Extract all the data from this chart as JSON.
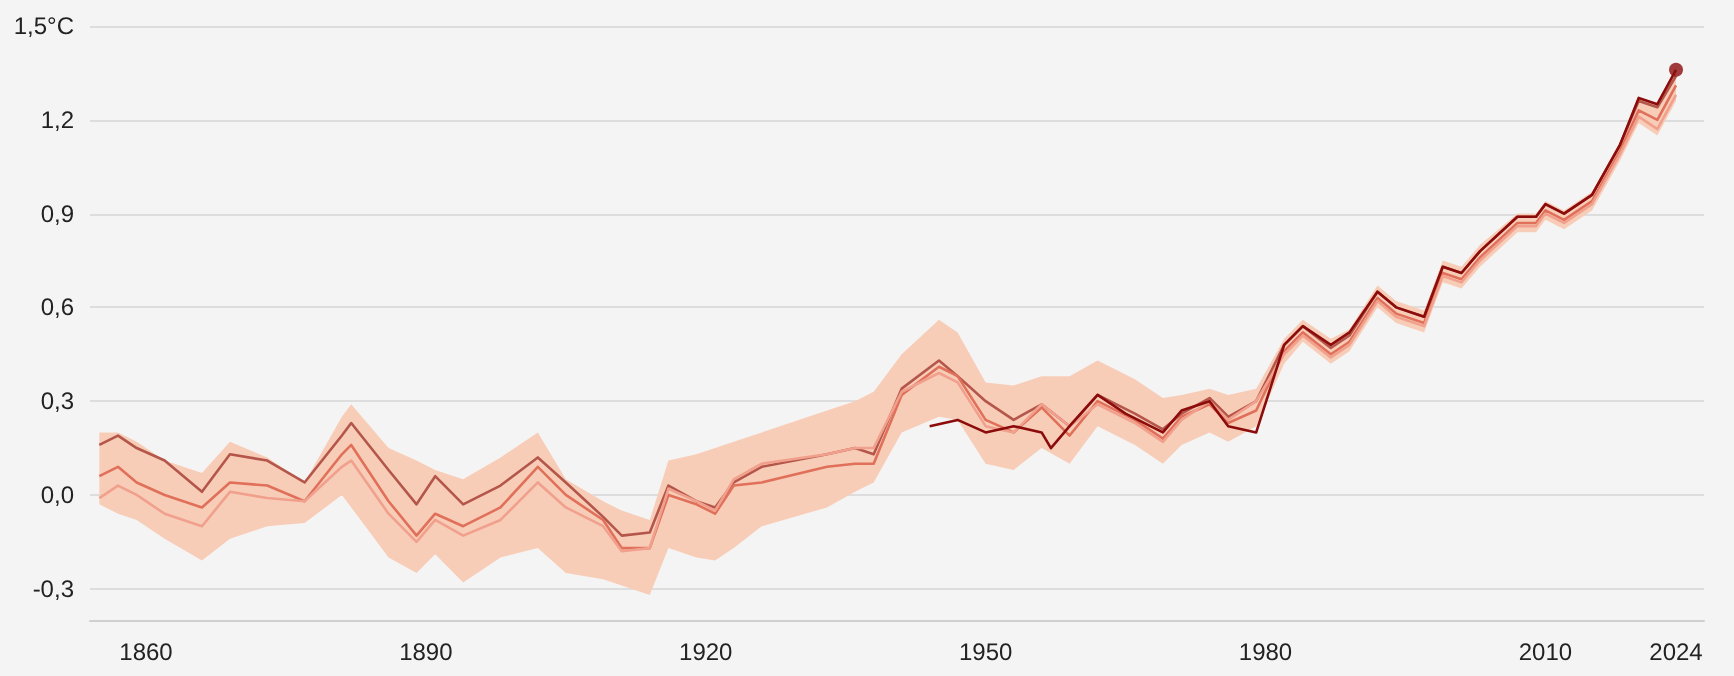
{
  "chart_data": {
    "type": "line",
    "x": [
      1855,
      1857,
      1859,
      1862,
      1866,
      1869,
      1873,
      1877,
      1881,
      1882,
      1886,
      1889,
      1891,
      1894,
      1898,
      1902,
      1905,
      1909,
      1911,
      1914,
      1916,
      1919,
      1921,
      1923,
      1926,
      1933,
      1936,
      1938,
      1941,
      1945,
      1947,
      1950,
      1953,
      1956,
      1959,
      1962,
      1966,
      1969,
      1971,
      1974,
      1976,
      1979,
      1982,
      1984,
      1987,
      1989,
      1992,
      1994,
      1997,
      1999,
      2001,
      2003,
      2007,
      2009,
      2010,
      2012,
      2015,
      2018,
      2020,
      2022,
      2024
    ],
    "series": [
      {
        "color": "#b4564a",
        "values": [
          0.16,
          0.19,
          0.15,
          0.11,
          0.01,
          0.13,
          0.11,
          0.04,
          0.19,
          0.23,
          0.08,
          -0.03,
          0.06,
          -0.03,
          0.03,
          0.12,
          0.04,
          -0.07,
          -0.13,
          -0.12,
          0.03,
          -0.02,
          -0.04,
          0.04,
          0.09,
          0.13,
          0.15,
          0.13,
          0.34,
          0.43,
          0.38,
          0.3,
          0.24,
          0.29,
          0.22,
          0.32,
          0.26,
          0.21,
          0.26,
          0.31,
          0.25,
          0.3,
          0.48,
          0.54,
          0.47,
          0.51,
          0.65,
          0.6,
          0.57,
          0.73,
          0.71,
          0.78,
          0.89,
          0.89,
          0.93,
          0.9,
          0.96,
          1.12,
          1.26,
          1.24,
          1.34
        ]
      },
      {
        "color": "#e0705a",
        "values": [
          0.06,
          0.09,
          0.04,
          0,
          -0.04,
          0.04,
          0.03,
          -0.02,
          0.13,
          0.16,
          -0.02,
          -0.13,
          -0.06,
          -0.1,
          -0.04,
          0.09,
          0,
          -0.08,
          -0.17,
          -0.17,
          0,
          -0.03,
          -0.06,
          0.03,
          0.04,
          0.09,
          0.1,
          0.1,
          0.32,
          0.41,
          0.38,
          0.24,
          0.2,
          0.28,
          0.19,
          0.3,
          0.24,
          0.18,
          0.25,
          0.29,
          0.23,
          0.27,
          0.46,
          0.52,
          0.45,
          0.49,
          0.63,
          0.58,
          0.55,
          0.71,
          0.69,
          0.76,
          0.87,
          0.87,
          0.91,
          0.88,
          0.94,
          1.1,
          1.23,
          1.2,
          1.31
        ],
        "lower": [
          -0.03,
          -0.06,
          -0.08,
          -0.14,
          -0.21,
          -0.14,
          -0.1,
          -0.09,
          0,
          -0.04,
          -0.2,
          -0.25,
          -0.19,
          -0.28,
          -0.2,
          -0.17,
          -0.25,
          -0.27,
          -0.29,
          -0.32,
          -0.17,
          -0.2,
          -0.21,
          -0.17,
          -0.1,
          -0.04,
          0.01,
          0.04,
          0.2,
          0.25,
          0.24,
          0.1,
          0.08,
          0.15,
          0.1,
          0.22,
          0.16,
          0.1,
          0.16,
          0.2,
          0.17,
          0.22,
          0.42,
          0.49,
          0.42,
          0.46,
          0.6,
          0.55,
          0.52,
          0.68,
          0.66,
          0.73,
          0.84,
          0.84,
          0.88,
          0.85,
          0.91,
          1.07,
          1.19,
          1.15,
          1.26
        ],
        "upper": [
          0.2,
          0.2,
          0.17,
          0.11,
          0.07,
          0.17,
          0.12,
          0.04,
          0.25,
          0.29,
          0.15,
          0.11,
          0.08,
          0.05,
          0.12,
          0.2,
          0.05,
          -0.02,
          -0.05,
          -0.08,
          0.11,
          0.13,
          0.15,
          0.17,
          0.2,
          0.27,
          0.3,
          0.33,
          0.45,
          0.56,
          0.52,
          0.36,
          0.35,
          0.38,
          0.38,
          0.43,
          0.37,
          0.31,
          0.32,
          0.34,
          0.32,
          0.34,
          0.5,
          0.56,
          0.5,
          0.53,
          0.67,
          0.62,
          0.59,
          0.75,
          0.73,
          0.8,
          0.9,
          0.9,
          0.94,
          0.91,
          0.97,
          1.13,
          1.27,
          1.25,
          1.35
        ]
      },
      {
        "color": "#f0a08c",
        "values": [
          -0.01,
          0.03,
          0,
          -0.06,
          -0.1,
          0.01,
          -0.01,
          -0.02,
          0.09,
          0.11,
          -0.06,
          -0.15,
          -0.08,
          -0.13,
          -0.08,
          0.04,
          -0.04,
          -0.1,
          -0.18,
          -0.17,
          0.02,
          -0.02,
          -0.05,
          0.05,
          0.1,
          0.13,
          0.15,
          0.15,
          0.33,
          0.39,
          0.36,
          0.22,
          0.2,
          0.29,
          0.22,
          0.29,
          0.23,
          0.17,
          0.24,
          0.3,
          0.24,
          0.3,
          0.45,
          0.51,
          0.44,
          0.48,
          0.62,
          0.57,
          0.54,
          0.7,
          0.68,
          0.75,
          0.86,
          0.86,
          0.9,
          0.87,
          0.93,
          1.09,
          1.21,
          1.17,
          1.28
        ]
      },
      {
        "color": "#8c0c0c",
        "x": [
          1944,
          1947,
          1950,
          1953,
          1956,
          1957,
          1959,
          1962,
          1965,
          1969,
          1971,
          1974,
          1976,
          1979,
          1982,
          1984,
          1987,
          1989,
          1992,
          1994,
          1997,
          1999,
          2001,
          2003,
          2007,
          2009,
          2010,
          2012,
          2015,
          2018,
          2020,
          2022,
          2024
        ],
        "values": [
          0.22,
          0.24,
          0.2,
          0.22,
          0.2,
          0.15,
          0.22,
          0.32,
          0.26,
          0.2,
          0.27,
          0.3,
          0.22,
          0.2,
          0.48,
          0.54,
          0.48,
          0.52,
          0.65,
          0.6,
          0.57,
          0.73,
          0.71,
          0.78,
          0.89,
          0.89,
          0.93,
          0.9,
          0.96,
          1.12,
          1.27,
          1.25,
          1.36
        ]
      },
      {
        "type": "scatter",
        "marker": "circle",
        "color": "#8c0c0c",
        "x": [
          2024
        ],
        "values": [
          1.36
        ]
      }
    ],
    "xlim": [
      1854,
      2027
    ],
    "xticks": [
      1860,
      1890,
      1920,
      1950,
      1980,
      2010,
      2024
    ],
    "ylim": [
      -0.4,
      1.5
    ],
    "yticks": [
      {
        "value": -0.3,
        "label": "-0,3"
      },
      {
        "value": 0,
        "label": "0,0"
      },
      {
        "value": 0.3,
        "label": "0,3"
      },
      {
        "value": 0.6,
        "label": "0,6"
      },
      {
        "value": 0.9,
        "label": "0,9"
      },
      {
        "value": 1.2,
        "label": "1,2"
      },
      {
        "value": 1.5,
        "label": "1,5°C"
      }
    ],
    "grid": "y",
    "marker": "none",
    "tick_labels": "xy"
  }
}
